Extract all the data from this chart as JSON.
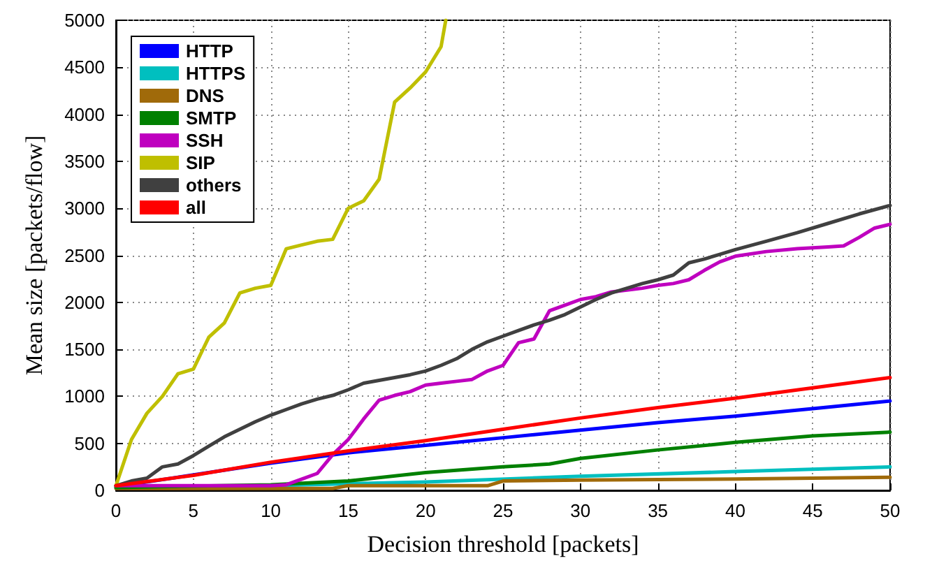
{
  "chart_data": {
    "type": "line",
    "xlabel": "Decision threshold [packets]",
    "ylabel": "Mean size [packets/flow]",
    "xlim": [
      0,
      50
    ],
    "xticks": [
      0,
      5,
      10,
      15,
      20,
      25,
      30,
      35,
      40,
      45,
      50
    ],
    "ylim": [
      0,
      5000
    ],
    "yticks": [
      0,
      500,
      1000,
      1500,
      2000,
      2500,
      3000,
      3500,
      4000,
      4500,
      5000
    ],
    "grid": true,
    "legend": "top left",
    "line_style": "solid",
    "marker": "none",
    "series": [
      {
        "name": "HTTP",
        "color": "#0000ff",
        "x": [
          0,
          10,
          15,
          20,
          25,
          30,
          35,
          40,
          45,
          50
        ],
        "values": [
          40,
          290,
          400,
          480,
          560,
          640,
          720,
          790,
          870,
          950
        ]
      },
      {
        "name": "HTTPS",
        "color": "#00bfbf",
        "x": [
          0,
          10,
          20,
          30,
          40,
          50
        ],
        "values": [
          30,
          50,
          90,
          150,
          200,
          250
        ]
      },
      {
        "name": "DNS",
        "color": "#a06a0a",
        "x": [
          0,
          14,
          15,
          24,
          25,
          30,
          40,
          50
        ],
        "values": [
          20,
          20,
          50,
          50,
          100,
          110,
          120,
          140
        ]
      },
      {
        "name": "SMTP",
        "color": "#008000",
        "x": [
          0,
          10,
          15,
          20,
          25,
          28,
          30,
          35,
          40,
          45,
          50
        ],
        "values": [
          30,
          60,
          100,
          190,
          250,
          280,
          340,
          430,
          510,
          580,
          620
        ]
      },
      {
        "name": "SSH",
        "color": "#bf00bf",
        "x": [
          0,
          5,
          10,
          11,
          12,
          13,
          14,
          15,
          16,
          17,
          18,
          19,
          20,
          21,
          22,
          23,
          24,
          25,
          26,
          27,
          28,
          29,
          30,
          31,
          32,
          33,
          34,
          35,
          36,
          37,
          38,
          39,
          40,
          42,
          44,
          46,
          47,
          48,
          49,
          50
        ],
        "values": [
          50,
          50,
          50,
          60,
          120,
          180,
          380,
          540,
          760,
          960,
          1010,
          1050,
          1120,
          1140,
          1160,
          1180,
          1270,
          1330,
          1570,
          1610,
          1910,
          1970,
          2030,
          2060,
          2110,
          2130,
          2150,
          2180,
          2200,
          2240,
          2340,
          2430,
          2490,
          2540,
          2570,
          2590,
          2600,
          2690,
          2790,
          2830
        ]
      },
      {
        "name": "SIP",
        "color": "#bfbf00",
        "x": [
          0,
          1,
          2,
          3,
          4,
          5,
          6,
          7,
          8,
          9,
          10,
          11,
          12,
          13,
          14,
          15,
          16,
          17,
          18,
          19,
          20,
          21,
          21.3
        ],
        "values": [
          50,
          540,
          820,
          1000,
          1240,
          1290,
          1630,
          1780,
          2100,
          2150,
          2180,
          2570,
          2610,
          2650,
          2670,
          3000,
          3080,
          3310,
          4130,
          4280,
          4450,
          4720,
          5000
        ]
      },
      {
        "name": "others",
        "color": "#404040",
        "x": [
          0,
          1,
          2,
          3,
          4,
          5,
          6,
          7,
          8,
          9,
          10,
          11,
          12,
          13,
          14,
          15,
          16,
          17,
          18,
          19,
          20,
          21,
          22,
          23,
          24,
          25,
          26,
          27,
          28,
          29,
          30,
          31,
          32,
          33,
          34,
          35,
          36,
          37,
          38,
          39,
          40,
          42,
          44,
          46,
          48,
          50
        ],
        "values": [
          50,
          100,
          130,
          250,
          280,
          370,
          470,
          570,
          650,
          730,
          800,
          860,
          920,
          970,
          1010,
          1070,
          1140,
          1170,
          1200,
          1230,
          1270,
          1330,
          1400,
          1500,
          1580,
          1640,
          1700,
          1760,
          1810,
          1870,
          1950,
          2030,
          2100,
          2150,
          2200,
          2240,
          2290,
          2420,
          2460,
          2510,
          2560,
          2650,
          2740,
          2840,
          2940,
          3030
        ]
      },
      {
        "name": "all",
        "color": "#ff0000",
        "x": [
          0,
          5,
          10,
          15,
          20,
          25,
          30,
          35,
          40,
          45,
          50
        ],
        "values": [
          50,
          160,
          300,
          420,
          530,
          650,
          770,
          880,
          980,
          1090,
          1200
        ]
      }
    ]
  }
}
